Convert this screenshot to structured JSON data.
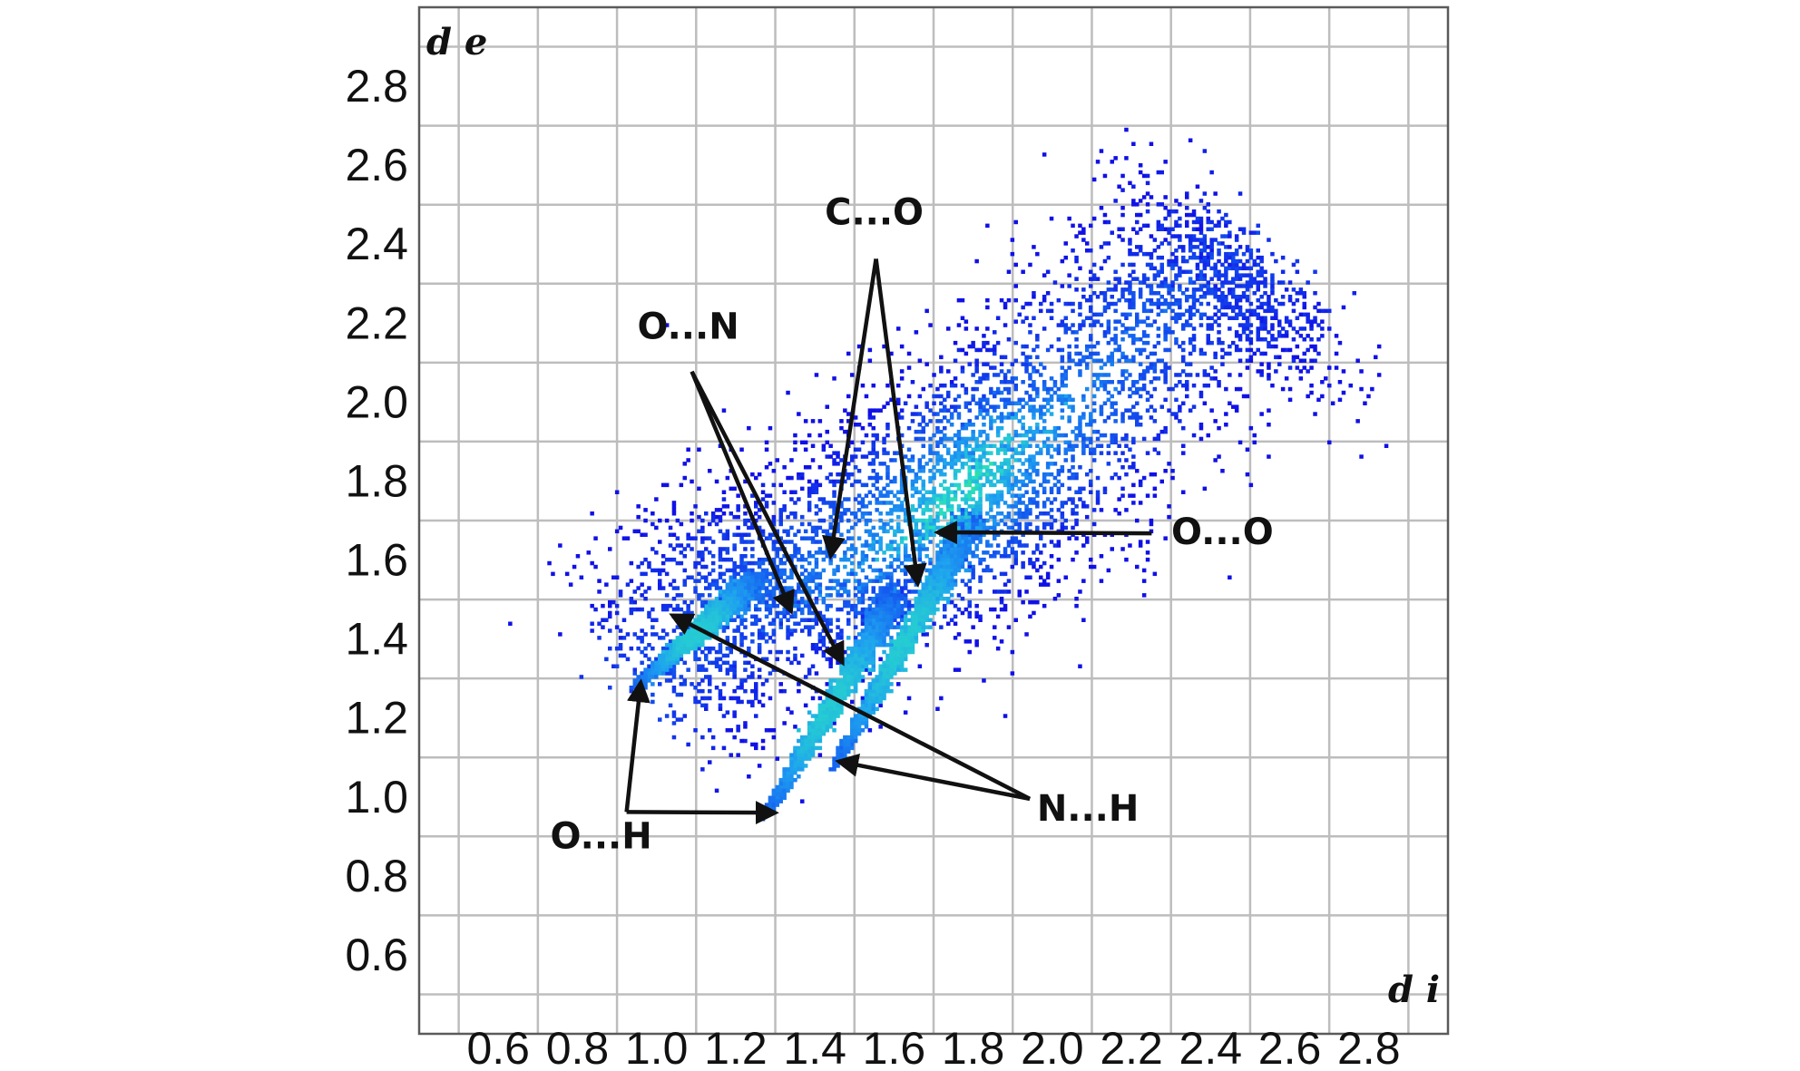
{
  "chart_data": {
    "type": "heatmap",
    "title": "",
    "xlabel": "d i",
    "ylabel": "d e",
    "xlim": [
      0.4,
      3.0
    ],
    "ylim": [
      0.4,
      3.0
    ],
    "x_ticks": [
      "0.6",
      "0.8",
      "1.0",
      "1.2",
      "1.4",
      "1.6",
      "1.8",
      "2.0",
      "2.2",
      "2.4",
      "2.6",
      "2.8"
    ],
    "y_ticks": [
      "0.6",
      "0.8",
      "1.0",
      "1.2",
      "1.4",
      "1.6",
      "1.8",
      "2.0",
      "2.2",
      "2.4",
      "2.6",
      "2.8"
    ],
    "grid": true,
    "colors": {
      "low": "#1010e6",
      "mid": "#1e7cf0",
      "high": "#2ee8c0",
      "peak": "#3ce84a"
    },
    "point_density": {
      "main_ridge": [
        {
          "x": 1.0,
          "y": 1.3,
          "level": 0.25
        },
        {
          "x": 1.2,
          "y": 1.5,
          "level": 0.35
        },
        {
          "x": 1.4,
          "y": 1.55,
          "level": 0.45
        },
        {
          "x": 1.6,
          "y": 1.65,
          "level": 0.6
        },
        {
          "x": 1.75,
          "y": 1.75,
          "level": 0.85
        },
        {
          "x": 1.85,
          "y": 1.85,
          "level": 0.75
        },
        {
          "x": 2.0,
          "y": 1.95,
          "level": 0.55
        },
        {
          "x": 2.2,
          "y": 2.15,
          "level": 0.4
        },
        {
          "x": 2.4,
          "y": 2.35,
          "level": 0.25
        },
        {
          "x": 2.55,
          "y": 2.25,
          "level": 0.15
        }
      ],
      "spikes": [
        {
          "from": [
            1.28,
            0.96
          ],
          "to": [
            1.6,
            1.5
          ]
        },
        {
          "from": [
            0.95,
            1.28
          ],
          "to": [
            1.25,
            1.55
          ]
        },
        {
          "from": [
            1.45,
            1.08
          ],
          "to": [
            1.8,
            1.7
          ]
        }
      ]
    },
    "annotations": [
      {
        "label": "C...O",
        "text_at": [
          1.55,
          2.45
        ],
        "arrows_to": [
          [
            1.44,
            1.61
          ],
          [
            1.66,
            1.54
          ]
        ]
      },
      {
        "label": "O...N",
        "text_at": [
          1.08,
          2.16
        ],
        "arrows_to": [
          [
            1.34,
            1.47
          ],
          [
            1.47,
            1.34
          ]
        ]
      },
      {
        "label": "O...O",
        "text_at": [
          2.43,
          1.64
        ],
        "arrows_to": [
          [
            1.71,
            1.67
          ]
        ]
      },
      {
        "label": "N...H",
        "text_at": [
          2.09,
          0.94
        ],
        "arrows_to": [
          [
            1.04,
            1.46
          ],
          [
            1.46,
            1.09
          ]
        ]
      },
      {
        "label": "O...H",
        "text_at": [
          0.86,
          0.87
        ],
        "arrows_to": [
          [
            0.96,
            1.29
          ],
          [
            1.3,
            0.96
          ]
        ]
      }
    ]
  }
}
